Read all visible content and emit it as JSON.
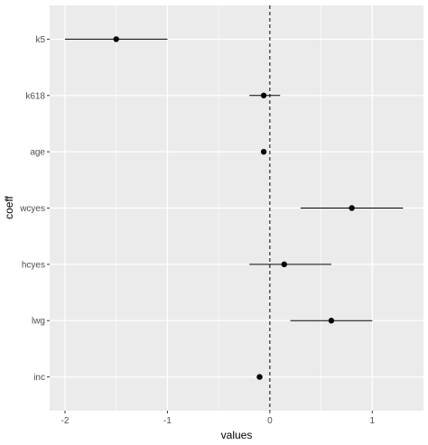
{
  "chart_data": {
    "type": "scatter",
    "subtype": "coefficient-plot-with-error-bars",
    "title": "",
    "xlabel": "values",
    "ylabel": "coeff",
    "xlim": [
      -2.15,
      1.5
    ],
    "x_ticks": [
      -2,
      -1,
      0,
      1
    ],
    "x_tick_labels": [
      "-2",
      "-1",
      "0",
      "1"
    ],
    "categories": [
      "k5",
      "k618",
      "age",
      "wcyes",
      "hcyes",
      "lwg",
      "inc"
    ],
    "values": [
      -1.5,
      -0.06,
      -0.06,
      0.8,
      0.14,
      0.6,
      -0.1
    ],
    "lower": [
      -2.0,
      -0.2,
      -0.08,
      0.3,
      -0.2,
      0.2,
      -0.12
    ],
    "upper": [
      -1.0,
      0.1,
      -0.04,
      1.3,
      0.6,
      1.0,
      -0.08
    ],
    "reference_line": {
      "x": 0,
      "style": "dashed"
    },
    "grid": true,
    "legend": "none",
    "colors": {
      "panel": "#ebebeb",
      "grid_major": "#ffffff",
      "points": "#000000",
      "tick_text": "#4d4d4d"
    }
  }
}
